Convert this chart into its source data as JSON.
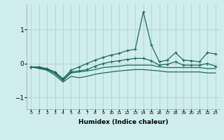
{
  "xlabel": "Humidex (Indice chaleur)",
  "x": [
    0,
    1,
    2,
    3,
    4,
    5,
    6,
    7,
    8,
    9,
    10,
    11,
    12,
    13,
    14,
    15,
    16,
    17,
    18,
    19,
    20,
    21,
    22,
    23
  ],
  "line_upper": [
    -0.1,
    -0.1,
    -0.15,
    -0.25,
    -0.45,
    -0.2,
    -0.1,
    0.0,
    0.1,
    0.18,
    0.25,
    0.3,
    0.38,
    0.42,
    1.52,
    0.55,
    0.05,
    0.1,
    0.32,
    0.1,
    0.08,
    0.05,
    0.32,
    0.28
  ],
  "line_mid1": [
    -0.1,
    -0.12,
    -0.17,
    -0.28,
    -0.48,
    -0.25,
    -0.22,
    -0.18,
    -0.08,
    0.0,
    0.05,
    0.08,
    0.12,
    0.15,
    0.15,
    0.08,
    -0.05,
    -0.02,
    0.05,
    -0.05,
    -0.05,
    -0.05,
    0.0,
    -0.08
  ],
  "line_mid2": [
    -0.1,
    -0.12,
    -0.17,
    -0.3,
    -0.5,
    -0.28,
    -0.25,
    -0.22,
    -0.18,
    -0.12,
    -0.1,
    -0.08,
    -0.05,
    -0.05,
    -0.05,
    -0.05,
    -0.1,
    -0.12,
    -0.12,
    -0.12,
    -0.12,
    -0.12,
    -0.15,
    -0.15
  ],
  "line_lower": [
    -0.1,
    -0.15,
    -0.2,
    -0.35,
    -0.55,
    -0.38,
    -0.42,
    -0.38,
    -0.32,
    -0.28,
    -0.25,
    -0.22,
    -0.2,
    -0.18,
    -0.18,
    -0.2,
    -0.22,
    -0.25,
    -0.25,
    -0.25,
    -0.25,
    -0.25,
    -0.28,
    -0.28
  ],
  "line_color": "#1a6b5a",
  "bg_color": "#d0eded",
  "grid_color": "#b0d0d0",
  "ylim": [
    -1.35,
    1.75
  ],
  "yticks": [
    -1,
    0,
    1
  ],
  "xlim": [
    -0.5,
    23.5
  ]
}
